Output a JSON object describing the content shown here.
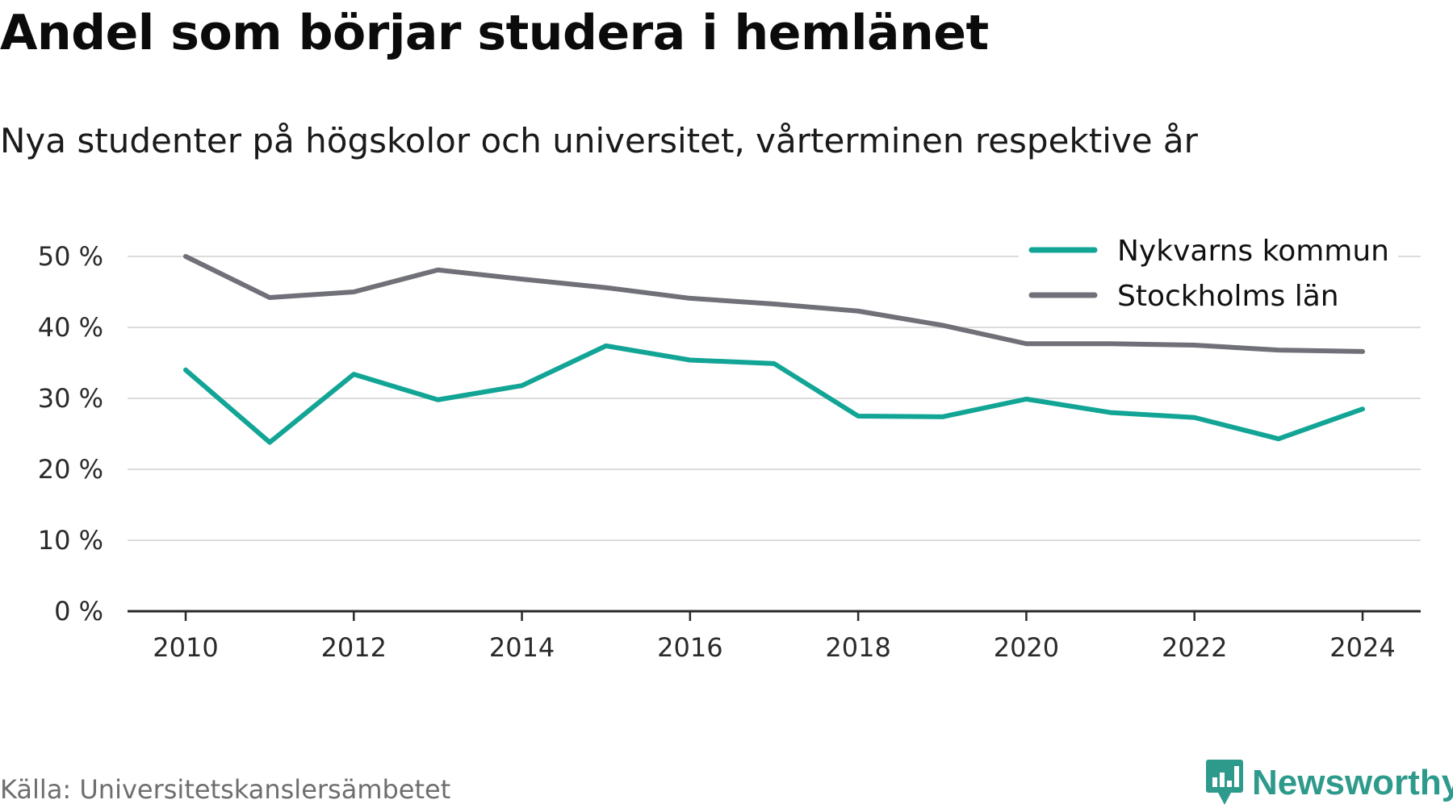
{
  "title": "Andel som börjar studera i hemlänet",
  "subtitle": "Nya studenter på högskolor och universitet, vårterminen respektive år",
  "source": "Källa: Universitetskanslersämbetet",
  "brand": {
    "name": "Newsworthy",
    "icon": "newsworthy-logo-icon",
    "color": "#2e9a8c"
  },
  "chart_data": {
    "type": "line",
    "x": [
      2010,
      2011,
      2012,
      2013,
      2014,
      2015,
      2016,
      2017,
      2018,
      2019,
      2020,
      2021,
      2022,
      2023,
      2024
    ],
    "x_ticks": [
      "2010",
      "2012",
      "2014",
      "2016",
      "2018",
      "2020",
      "2022",
      "2024"
    ],
    "y_ticks": [
      "0 %",
      "10 %",
      "20 %",
      "30 %",
      "40 %",
      "50 %"
    ],
    "ylim": [
      0,
      50
    ],
    "grid": true,
    "legend_position": "top-right",
    "series": [
      {
        "name": "Nykvarns kommun",
        "color": "#12a596",
        "values": [
          34,
          23.8,
          33.4,
          29.8,
          31.8,
          37.4,
          35.4,
          34.9,
          27.5,
          27.4,
          29.9,
          28,
          27.3,
          24.3,
          28.5
        ]
      },
      {
        "name": "Stockholms län",
        "color": "#707078",
        "values": [
          50,
          44.2,
          45,
          48.1,
          46.8,
          45.6,
          44.1,
          43.3,
          42.3,
          40.3,
          37.7,
          37.7,
          37.5,
          36.8,
          36.6
        ]
      }
    ]
  }
}
